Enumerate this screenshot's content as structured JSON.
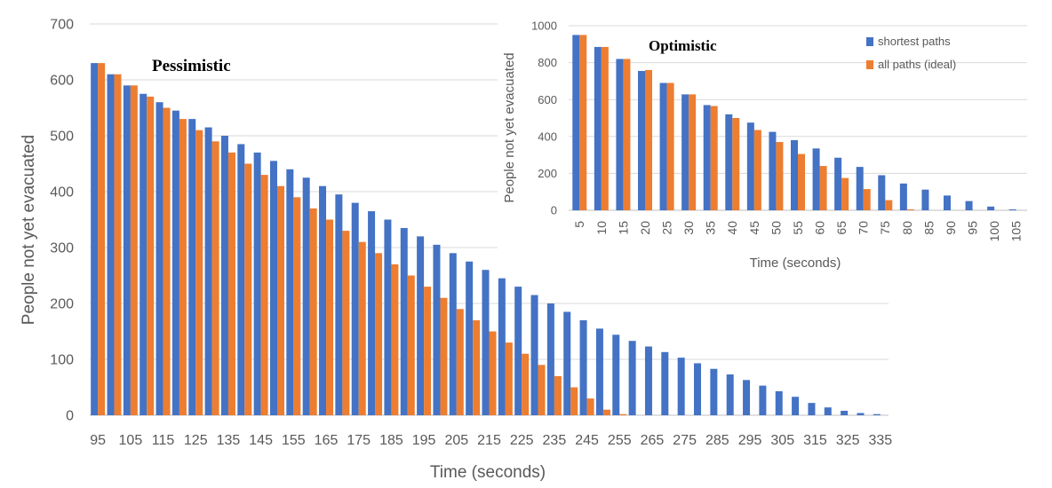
{
  "chart_data": [
    {
      "type": "bar",
      "title": "Pessimistic",
      "xlabel": "Time (seconds)",
      "ylabel": "People not yet evacuated",
      "ylim": [
        0,
        700
      ],
      "yticks": [
        0,
        100,
        200,
        300,
        400,
        500,
        600,
        700
      ],
      "categories": [
        95,
        100,
        105,
        110,
        115,
        120,
        125,
        130,
        135,
        140,
        145,
        150,
        155,
        160,
        165,
        170,
        175,
        180,
        185,
        190,
        195,
        200,
        205,
        210,
        215,
        220,
        225,
        230,
        235,
        240,
        245,
        250,
        255,
        260,
        265,
        270,
        275,
        280,
        285,
        290,
        295,
        300,
        305,
        310,
        315,
        320,
        325,
        330,
        335
      ],
      "x_tick_labels": [
        "95",
        "105",
        "115",
        "125",
        "135",
        "145",
        "155",
        "165",
        "175",
        "185",
        "195",
        "205",
        "215",
        "225",
        "235",
        "245",
        "255",
        "265",
        "275",
        "285",
        "295",
        "305",
        "315",
        "325",
        "335"
      ],
      "grid": true,
      "series": [
        {
          "name": "shortest paths",
          "color": "#4472C4",
          "values": [
            630,
            610,
            590,
            575,
            560,
            545,
            530,
            515,
            500,
            485,
            470,
            455,
            440,
            425,
            410,
            395,
            380,
            365,
            350,
            335,
            320,
            305,
            290,
            275,
            260,
            245,
            230,
            215,
            200,
            185,
            170,
            155,
            144,
            133,
            123,
            113,
            103,
            93,
            83,
            73,
            63,
            53,
            43,
            33,
            22,
            14,
            8,
            4,
            2
          ]
        },
        {
          "name": "all paths (ideal)",
          "color": "#ED7D31",
          "values": [
            630,
            610,
            590,
            570,
            550,
            530,
            510,
            490,
            470,
            450,
            430,
            410,
            390,
            370,
            350,
            330,
            310,
            290,
            270,
            250,
            230,
            210,
            190,
            170,
            150,
            130,
            110,
            90,
            70,
            50,
            30,
            10,
            2,
            0,
            0,
            0,
            0,
            0,
            0,
            0,
            0,
            0,
            0,
            0,
            0,
            0,
            0,
            0,
            0
          ]
        }
      ]
    },
    {
      "type": "bar",
      "title": "Optimistic",
      "xlabel": "Time (seconds)",
      "ylabel": "People not yet evacuated",
      "ylim": [
        0,
        1000
      ],
      "yticks": [
        0,
        200,
        400,
        600,
        800,
        1000
      ],
      "categories": [
        5,
        10,
        15,
        20,
        25,
        30,
        35,
        40,
        45,
        50,
        55,
        60,
        65,
        70,
        75,
        80,
        85,
        90,
        95,
        100,
        105
      ],
      "x_tick_labels": [
        "5",
        "10",
        "15",
        "20",
        "25",
        "30",
        "35",
        "40",
        "45",
        "50",
        "55",
        "60",
        "65",
        "70",
        "75",
        "80",
        "85",
        "90",
        "95",
        "100",
        "105"
      ],
      "grid": true,
      "legend_position": "top-right",
      "series": [
        {
          "name": "shortest paths",
          "color": "#4472C4",
          "values": [
            950,
            885,
            820,
            755,
            690,
            628,
            570,
            520,
            475,
            425,
            380,
            335,
            285,
            235,
            190,
            145,
            112,
            80,
            50,
            20,
            5
          ]
        },
        {
          "name": "all paths (ideal)",
          "color": "#ED7D31",
          "values": [
            950,
            885,
            820,
            760,
            690,
            628,
            565,
            500,
            435,
            370,
            305,
            240,
            175,
            115,
            55,
            5,
            0,
            0,
            0,
            0,
            0
          ]
        }
      ]
    }
  ]
}
